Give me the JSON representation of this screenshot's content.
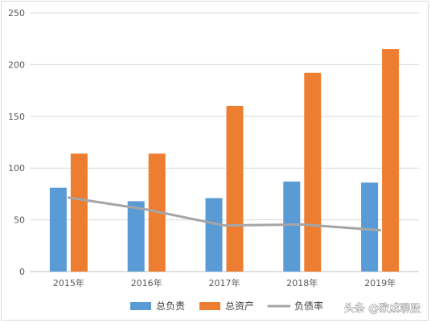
{
  "chart_data": {
    "type": "bar",
    "categories": [
      "2015年",
      "2016年",
      "2017年",
      "2018年",
      "2019年"
    ],
    "series": [
      {
        "name": "总负责",
        "kind": "bar",
        "color": "#5b9bd5",
        "values": [
          81,
          68,
          71,
          87,
          86
        ]
      },
      {
        "name": "总资产",
        "kind": "bar",
        "color": "#ed7d31",
        "values": [
          114,
          114,
          160,
          192,
          215
        ]
      },
      {
        "name": "负债率",
        "kind": "line",
        "color": "#a5a5a5",
        "values": [
          71.5,
          60,
          44.5,
          45.5,
          40
        ]
      }
    ],
    "ylim": [
      0,
      250
    ],
    "yticks": [
      0,
      50,
      100,
      150,
      200,
      250
    ],
    "grid": true,
    "legend_position": "bottom"
  },
  "watermark": "头条 @欧成聊股"
}
